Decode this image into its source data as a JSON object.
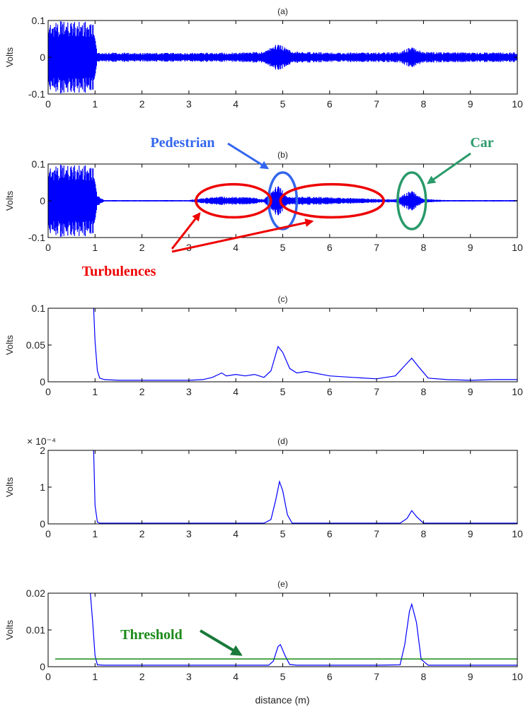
{
  "colors": {
    "signal": "#0000ff",
    "threshold": "#008000",
    "pedestrian": "#3366ee",
    "car": "#2a9a6a",
    "turbulence": "#ee0000",
    "arrow_green": "#1a7a3a"
  },
  "chart_data": [
    {
      "id": "a",
      "type": "line",
      "title": "(a)",
      "ylabel": "Volts",
      "xlabel": "",
      "xlim": [
        0,
        10
      ],
      "ylim": [
        -0.1,
        0.1
      ],
      "xticks": [
        "0",
        "1",
        "2",
        "3",
        "4",
        "5",
        "6",
        "7",
        "8",
        "9",
        "10"
      ],
      "yticks": [
        "0.1",
        "0",
        "-0.1"
      ],
      "ytick_values": [
        0.1,
        0,
        -0.1
      ],
      "series": [
        {
          "kind": "envelope",
          "x": [
            0,
            0.95,
            1.05,
            2,
            3,
            4,
            4.6,
            4.9,
            5.2,
            6,
            7,
            7.5,
            7.75,
            8.0,
            9,
            10
          ],
          "amplitude": [
            0.1,
            0.1,
            0.013,
            0.012,
            0.012,
            0.013,
            0.015,
            0.038,
            0.016,
            0.013,
            0.013,
            0.014,
            0.03,
            0.015,
            0.013,
            0.013
          ]
        }
      ]
    },
    {
      "id": "b",
      "type": "line",
      "title": "(b)",
      "ylabel": "Volts",
      "xlabel": "",
      "xlim": [
        0,
        10
      ],
      "ylim": [
        -0.1,
        0.1
      ],
      "xticks": [
        "0",
        "1",
        "2",
        "3",
        "4",
        "5",
        "6",
        "7",
        "8",
        "9",
        "10"
      ],
      "yticks": [
        "0.1",
        "0",
        "-0.1"
      ],
      "ytick_values": [
        0.1,
        0,
        -0.1
      ],
      "series": [
        {
          "kind": "envelope",
          "x": [
            0,
            0.95,
            1.05,
            1.2,
            3.0,
            3.6,
            4.3,
            4.6,
            4.9,
            5.1,
            5.3,
            6.0,
            7.0,
            7.4,
            7.75,
            8.0,
            8.5,
            10
          ],
          "amplitude": [
            0.1,
            0.1,
            0.015,
            0.002,
            0.002,
            0.012,
            0.01,
            0.004,
            0.045,
            0.01,
            0.012,
            0.01,
            0.005,
            0.004,
            0.03,
            0.005,
            0.002,
            0.002
          ]
        }
      ],
      "annotations": [
        {
          "label": "Pedestrian",
          "color_key": "pedestrian",
          "ellipse_center": [
            5.0,
            0
          ],
          "ellipse_rx": 0.3,
          "ellipse_ry": 0.077
        },
        {
          "label": "Car",
          "color_key": "car",
          "ellipse_center": [
            7.75,
            0
          ],
          "ellipse_rx": 0.3,
          "ellipse_ry": 0.077
        },
        {
          "label": "Turbulences",
          "color_key": "turbulence",
          "ellipses": [
            {
              "center": [
                3.95,
                0
              ],
              "rx": 0.8,
              "ry": 0.045
            },
            {
              "center": [
                6.05,
                0
              ],
              "rx": 1.1,
              "ry": 0.045
            }
          ]
        }
      ]
    },
    {
      "id": "c",
      "type": "line",
      "title": "(c)",
      "ylabel": "Volts",
      "xlabel": "",
      "xlim": [
        0,
        10
      ],
      "ylim": [
        0,
        0.1
      ],
      "xticks": [
        "0",
        "1",
        "2",
        "3",
        "4",
        "5",
        "6",
        "7",
        "8",
        "9",
        "10"
      ],
      "yticks": [
        "0.1",
        "0.05",
        "0"
      ],
      "ytick_values": [
        0.1,
        0.05,
        0
      ],
      "series": [
        {
          "kind": "line",
          "x": [
            0.97,
            1.0,
            1.05,
            1.1,
            1.2,
            1.5,
            2.0,
            2.5,
            3.0,
            3.3,
            3.5,
            3.7,
            3.8,
            4.0,
            4.2,
            4.4,
            4.6,
            4.75,
            4.9,
            5.0,
            5.15,
            5.3,
            5.5,
            6.0,
            6.5,
            7.0,
            7.4,
            7.6,
            7.75,
            7.9,
            8.1,
            8.5,
            9.0,
            9.5,
            10.0
          ],
          "y": [
            0.1,
            0.055,
            0.015,
            0.005,
            0.003,
            0.002,
            0.002,
            0.002,
            0.002,
            0.003,
            0.006,
            0.012,
            0.008,
            0.01,
            0.008,
            0.01,
            0.006,
            0.015,
            0.048,
            0.04,
            0.018,
            0.012,
            0.014,
            0.008,
            0.006,
            0.004,
            0.008,
            0.022,
            0.032,
            0.02,
            0.005,
            0.003,
            0.002,
            0.003,
            0.003
          ]
        }
      ]
    },
    {
      "id": "d",
      "type": "line",
      "title": "(d)",
      "ylabel": "Volts",
      "xlabel": "",
      "exponent_label": "× 10⁻⁴",
      "xlim": [
        0,
        10
      ],
      "ylim": [
        0,
        2
      ],
      "xticks": [
        "0",
        "1",
        "2",
        "3",
        "4",
        "5",
        "6",
        "7",
        "8",
        "9",
        "10"
      ],
      "yticks": [
        "2",
        "1",
        "0"
      ],
      "ytick_values": [
        2,
        1,
        0
      ],
      "series": [
        {
          "kind": "line",
          "x": [
            0.97,
            1.0,
            1.05,
            1.1,
            2.0,
            3.0,
            4.0,
            4.6,
            4.75,
            4.85,
            4.93,
            5.0,
            5.1,
            5.2,
            6.0,
            7.0,
            7.5,
            7.65,
            7.75,
            7.85,
            8.0,
            9.0,
            10.0
          ],
          "y": [
            2.0,
            0.5,
            0.05,
            0.02,
            0.02,
            0.02,
            0.02,
            0.02,
            0.12,
            0.65,
            1.15,
            0.9,
            0.25,
            0.02,
            0.02,
            0.02,
            0.02,
            0.15,
            0.36,
            0.2,
            0.02,
            0.02,
            0.02
          ]
        }
      ]
    },
    {
      "id": "e",
      "type": "line",
      "title": "(e)",
      "ylabel": "Volts",
      "xlabel": "distance (m)",
      "xlim": [
        0,
        10
      ],
      "ylim": [
        0,
        0.02
      ],
      "xticks": [
        "0",
        "1",
        "2",
        "3",
        "4",
        "5",
        "6",
        "7",
        "8",
        "9",
        "10"
      ],
      "yticks": [
        "0.02",
        "0.01",
        "0"
      ],
      "ytick_values": [
        0.02,
        0.01,
        0
      ],
      "series": [
        {
          "kind": "line",
          "name": "",
          "x": [
            0.9,
            0.95,
            1.0,
            1.05,
            1.2,
            2.0,
            3.0,
            4.0,
            4.7,
            4.8,
            4.9,
            4.95,
            5.05,
            5.15,
            5.3,
            6.0,
            7.0,
            7.5,
            7.6,
            7.7,
            7.75,
            7.85,
            7.95,
            8.1,
            9.0,
            10.0
          ],
          "y": [
            0.02,
            0.012,
            0.003,
            0.0005,
            0.0004,
            0.0004,
            0.0004,
            0.0004,
            0.0004,
            0.0015,
            0.0055,
            0.006,
            0.003,
            0.0006,
            0.0004,
            0.0004,
            0.0004,
            0.0005,
            0.006,
            0.015,
            0.017,
            0.012,
            0.002,
            0.0004,
            0.0004,
            0.0004
          ]
        },
        {
          "kind": "line",
          "name": "Threshold",
          "color_key": "threshold",
          "x": [
            0.15,
            10
          ],
          "y": [
            0.0021,
            0.0021
          ]
        }
      ]
    }
  ]
}
